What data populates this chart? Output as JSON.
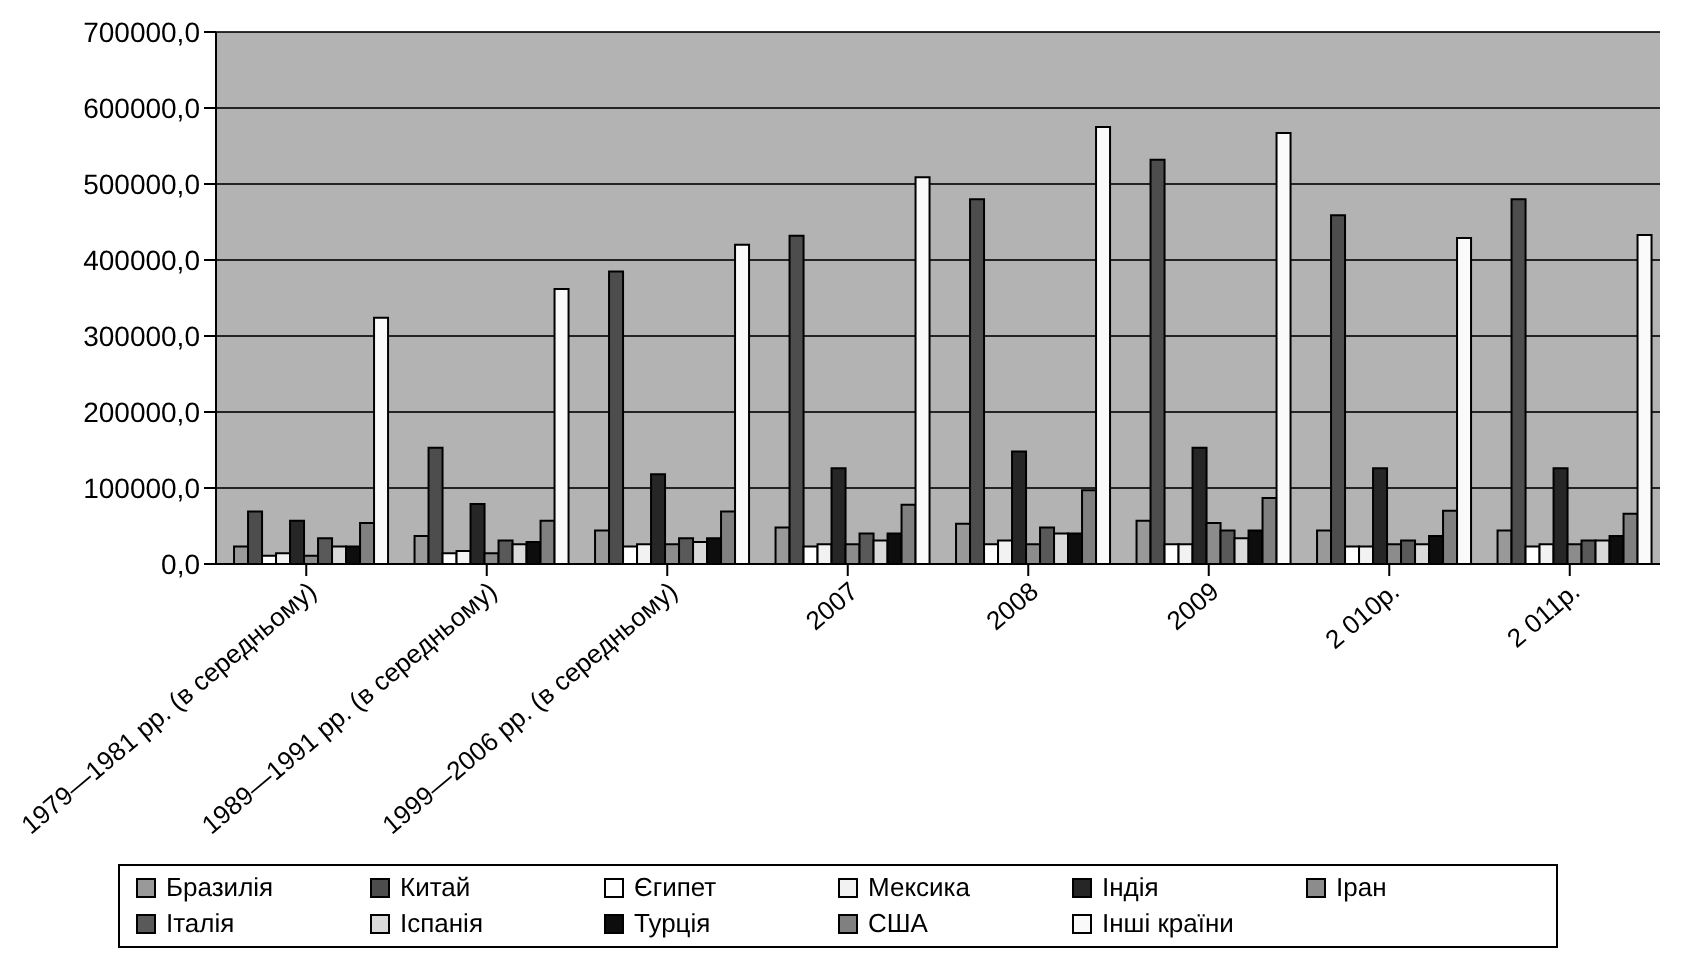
{
  "chart_data": {
    "type": "bar",
    "categories": [
      "1979—1981 рр. (в середньому)",
      "1989—1991 рр. (в середньому)",
      "1999—2006 рр. (в середньому)",
      "2007",
      "2008",
      "2009",
      "2 010р.",
      "2 011р."
    ],
    "series": [
      {
        "name": "Бразилія",
        "color": "#999999",
        "values": [
          23000,
          37000,
          44000,
          48000,
          53000,
          57000,
          44000,
          44000
        ]
      },
      {
        "name": "Китай",
        "color": "#4d4d4d",
        "values": [
          69000,
          153000,
          385000,
          432000,
          480000,
          532000,
          459000,
          480000
        ]
      },
      {
        "name": "Єгипет",
        "color": "#ffffff",
        "values": [
          11000,
          14000,
          23000,
          23000,
          26000,
          26000,
          23000,
          23000
        ]
      },
      {
        "name": "Мексика",
        "color": "#f2f2f2",
        "values": [
          14000,
          17000,
          26000,
          26000,
          31000,
          26000,
          23000,
          26000
        ]
      },
      {
        "name": "Індія",
        "color": "#262626",
        "values": [
          57000,
          79000,
          118000,
          126000,
          148000,
          153000,
          126000,
          126000
        ]
      },
      {
        "name": "Іран",
        "color": "#8c8c8c",
        "values": [
          11000,
          14000,
          26000,
          26000,
          26000,
          54000,
          26000,
          26000
        ]
      },
      {
        "name": "Італія",
        "color": "#595959",
        "values": [
          34000,
          31000,
          34000,
          40000,
          48000,
          44000,
          31000,
          31000
        ]
      },
      {
        "name": "Іспанія",
        "color": "#d9d9d9",
        "values": [
          23000,
          26000,
          29000,
          31000,
          40000,
          34000,
          26000,
          31000
        ]
      },
      {
        "name": "Турція",
        "color": "#0d0d0d",
        "values": [
          23000,
          29000,
          34000,
          40000,
          40000,
          44000,
          37000,
          37000
        ]
      },
      {
        "name": "США",
        "color": "#808080",
        "values": [
          54000,
          57000,
          69000,
          78000,
          97000,
          87000,
          70000,
          66000
        ]
      },
      {
        "name": "Інші країни",
        "color": "#fafafa",
        "values": [
          324000,
          362000,
          420000,
          509000,
          575000,
          567000,
          429000,
          433000
        ]
      }
    ],
    "ylim": [
      0,
      700000
    ],
    "yticks": [
      {
        "value": 0,
        "label": "0,0"
      },
      {
        "value": 100000,
        "label": "100000,0"
      },
      {
        "value": 200000,
        "label": "200000,0"
      },
      {
        "value": 300000,
        "label": "300000,0"
      },
      {
        "value": 400000,
        "label": "400000,0"
      },
      {
        "value": 500000,
        "label": "500000,0"
      },
      {
        "value": 600000,
        "label": "600000,0"
      },
      {
        "value": 700000,
        "label": "700000,0"
      }
    ],
    "grid": "y",
    "legend": "bottom"
  }
}
